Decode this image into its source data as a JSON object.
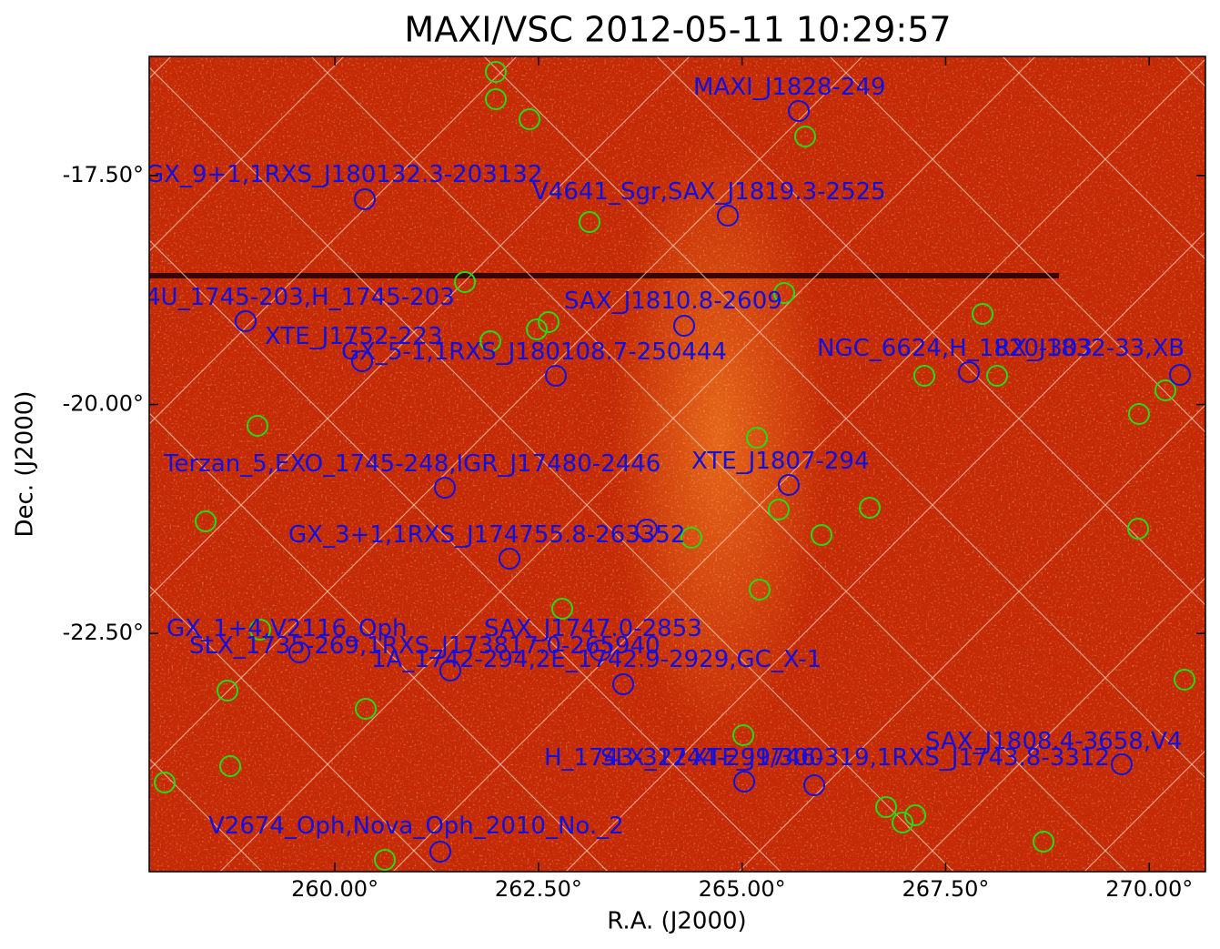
{
  "chart_data": {
    "type": "sky-image",
    "title": "MAXI/VSC 2012-05-11 10:29:57",
    "xlabel": "R.A. (J2000)",
    "ylabel": "Dec. (J2000)",
    "xlim": [
      257.72,
      270.69
    ],
    "ylim": [
      -25.1,
      -16.2
    ],
    "xticks": [
      {
        "value": 260,
        "label": "260.00°"
      },
      {
        "value": 262.5,
        "label": "262.50°"
      },
      {
        "value": 265,
        "label": "265.00°"
      },
      {
        "value": 267.5,
        "label": "267.50°"
      },
      {
        "value": 270,
        "label": "270.00°"
      }
    ],
    "yticks": [
      {
        "value": -17.5,
        "label": "-17.50°"
      },
      {
        "value": -20,
        "label": "-20.00°"
      },
      {
        "value": -22.5,
        "label": "-22.50°"
      }
    ],
    "source_color": "#1010e0",
    "catalog_color": "#22dd11",
    "annotations": [
      "MAXI_J1828-249",
      "GX_9+1,1RXS_J180132.3-203132",
      "V4641_Sgr,SAX_J1819.3-2525",
      "4U_1745-203,H_1745-203",
      "SAX_J1810.8-2609",
      "XTE_J1752-223",
      "GX_5-1,1RXS_J180108.7-250444",
      "NGC_6624,H_1820-303",
      "RX_J1832-33,XB",
      "Terzan_5,EXO_1745-248,IGR_J17480-2446",
      "XTE_J1807-294",
      "GX_3+1,1RXS_J174755.8-263352",
      "GX_1+4,V2116_Oph",
      "SAX_J1747.0-2853",
      "SLX_1735-269,1RXS_J173817.0-265940",
      "1A_1742-294,2E_1742.9-2929,GC_X-1",
      "SAX_J1808.4-3658,V4",
      "H_1743-322",
      "SLX_1744-299/300",
      "XTE_J1746-319,1RXS_J1743.8-3312",
      "V2674_Oph,Nova_Oph_2010_No._2"
    ]
  }
}
